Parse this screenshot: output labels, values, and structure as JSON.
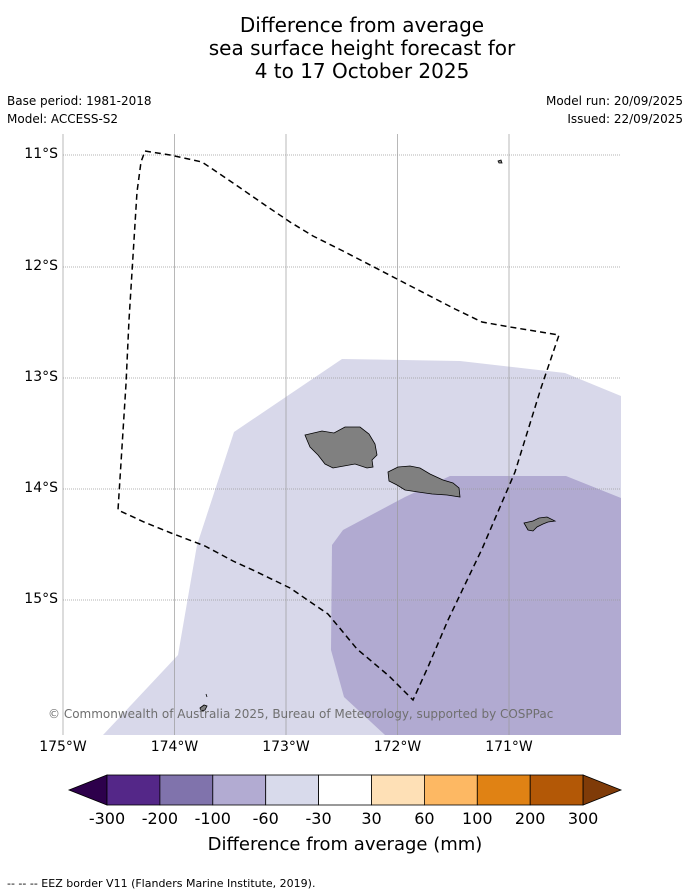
{
  "title": {
    "line1": "Difference from average",
    "line2": "sea surface height forecast for",
    "line3": "4 to 17 October 2025"
  },
  "meta": {
    "base_period": "Base period: 1981-2018",
    "model": "Model: ACCESS-S2",
    "model_run": "Model run: 20/09/2025",
    "issued": "Issued: 22/09/2025"
  },
  "map": {
    "lat_labels": [
      "11°S",
      "12°S",
      "13°S",
      "14°S",
      "15°S"
    ],
    "lon_labels": [
      "175°W",
      "174°W",
      "173°W",
      "172°W",
      "171°W"
    ],
    "copyright": "© Commonwealth of Australia 2025, Bureau of Meteorology, supported by COSPPac",
    "colors": {
      "ocean": "#ffffff",
      "anomaly_light": "#d8d8ea",
      "anomaly_medium": "#b1aad1",
      "land": "#808080",
      "grid": "#9a9a9a"
    }
  },
  "colorbar": {
    "label": "Difference from average (mm)",
    "ticks": [
      "-300",
      "-200",
      "-100",
      "-60",
      "-30",
      "30",
      "60",
      "100",
      "200",
      "300"
    ],
    "low_extend_color": "#2d004b",
    "high_extend_color": "#7f3b08",
    "colors": [
      "#542788",
      "#8073ac",
      "#b2abd2",
      "#d8daeb",
      "#ffffff",
      "#fee0b6",
      "#fdb863",
      "#e08214",
      "#b35806"
    ]
  },
  "legend_note": "--  --  -- EEZ border V11 (Flanders Marine Institute, 2019)."
}
